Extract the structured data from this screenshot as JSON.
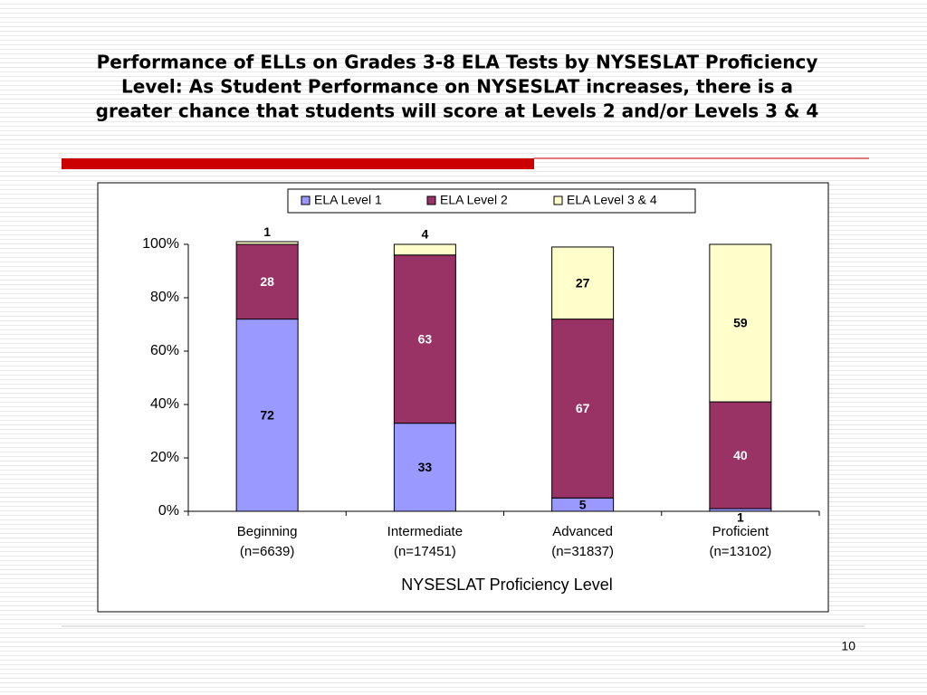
{
  "chart_data": {
    "type": "stacked_bar",
    "title": [
      "Performance of ELLs on Grades 3-8 ELA Tests by NYSESLAT Proficiency",
      "Level: As Student Performance on NYSESLAT increases, there is a",
      "greater chance that students will score at Levels 2 and/or Levels 3 & 4"
    ],
    "categories": [
      [
        "Beginning",
        "(n=6639)"
      ],
      [
        "Intermediate",
        "(n=17451)"
      ],
      [
        "Advanced",
        "(n=31837)"
      ],
      [
        "Proficient",
        "(n=13102)"
      ]
    ],
    "x_label": "NYSESLAT Proficiency Level",
    "series": [
      {
        "name": "ELA Level 1",
        "color": "#9999ff",
        "label_color": "#000000",
        "values": [
          72,
          33,
          5,
          1
        ]
      },
      {
        "name": "ELA Level 2",
        "color": "#993366",
        "label_color": "#ffffff",
        "values": [
          28,
          63,
          67,
          40
        ]
      },
      {
        "name": "ELA Level 3 & 4",
        "color": "#ffffcc",
        "label_color": "#000000",
        "values": [
          1,
          4,
          27,
          59
        ]
      }
    ],
    "ylim": [
      0,
      100
    ],
    "yticks": [
      {
        "value": 0,
        "label": "0%"
      },
      {
        "value": 20,
        "label": "20%"
      },
      {
        "value": 40,
        "label": "40%"
      },
      {
        "value": 60,
        "label": "60%"
      },
      {
        "value": 80,
        "label": "80%"
      },
      {
        "value": 100,
        "label": "100%"
      }
    ],
    "legend": "top",
    "page_number": "10"
  }
}
